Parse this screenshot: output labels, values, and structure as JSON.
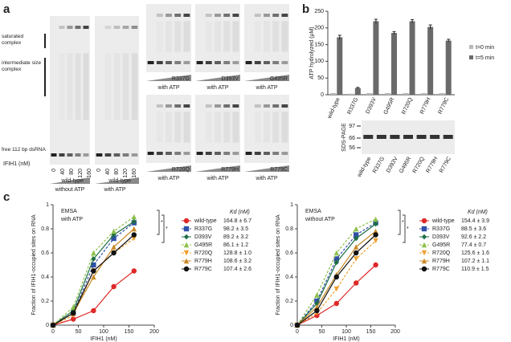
{
  "panel_labels": [
    "a",
    "b",
    "c"
  ],
  "gel_a": {
    "saturated": "saturated complex",
    "intermediate": "intermediate size complex",
    "free": "free 112 bp dsRNA",
    "ifih1": "IFIH1 (nM)",
    "lanes": [
      "0",
      "40",
      "80",
      "120",
      "160"
    ],
    "wedge": "wild-type",
    "conditions": [
      "without ATP",
      "with ATP"
    ]
  },
  "mutant_gels": [
    {
      "name": "R337G",
      "condition": "with ATP"
    },
    {
      "name": "D393V",
      "condition": "with ATP"
    },
    {
      "name": "G495R",
      "condition": "with ATP"
    },
    {
      "name": "R720Q",
      "condition": "with ATP"
    },
    {
      "name": "R779H",
      "condition": "with ATP"
    },
    {
      "name": "R779C",
      "condition": "with ATP"
    }
  ],
  "sds_page": {
    "label": "SDS-PAGE",
    "markers": [
      "97",
      "66",
      "56"
    ],
    "lanes": [
      "wild-type",
      "R337G",
      "D393V",
      "G495R",
      "R720Q",
      "R779H",
      "R779C"
    ]
  },
  "chart_data": [
    {
      "type": "bar",
      "ylabel": "ATP hydrolyzed (μM)",
      "categories": [
        "wild-type",
        "R337G",
        "D393V",
        "G495R",
        "R720Q",
        "R779H",
        "R779C"
      ],
      "series": [
        {
          "name": "t=0 min",
          "color": "#b8b8b8",
          "values": [
            5,
            3,
            5,
            5,
            5,
            5,
            5
          ]
        },
        {
          "name": "t=5 min",
          "color": "#6a6a6a",
          "values": [
            172,
            20,
            220,
            185,
            220,
            203,
            162
          ],
          "errors": [
            6,
            2,
            6,
            4,
            5,
            6,
            4
          ]
        }
      ],
      "ylim": [
        0,
        250
      ],
      "yticks": [
        0,
        50,
        100,
        150,
        200,
        250
      ]
    },
    {
      "type": "line",
      "title": "EMSA",
      "subtitle": "with ATP",
      "xlabel": "IFIH1 (nM)",
      "ylabel": "Fraction of IFIH1-occupied sites on RNA",
      "legend_title": "Kd (nM)",
      "annotations": [
        "*",
        "*"
      ],
      "x": [
        0,
        40,
        80,
        120,
        160
      ],
      "xlim": [
        0,
        200
      ],
      "xticks": [
        0,
        50,
        100,
        150,
        200
      ],
      "ylim": [
        0,
        1
      ],
      "yticks": [
        0,
        0.2,
        0.4,
        0.6,
        0.8,
        1
      ],
      "series": [
        {
          "name": "wild-type",
          "color": "#e02828",
          "marker": "circle",
          "dashed": false,
          "kd": "164.8 ± 6.7",
          "values": [
            0,
            0.05,
            0.12,
            0.32,
            0.45
          ]
        },
        {
          "name": "R337G",
          "color": "#3050a8",
          "marker": "square",
          "dashed": true,
          "kd": "98.2 ± 3.5",
          "values": [
            0,
            0.1,
            0.5,
            0.72,
            0.85
          ]
        },
        {
          "name": "D393V",
          "color": "#1e6e44",
          "marker": "diamond",
          "dashed": false,
          "kd": "89.2 ± 3.2",
          "values": [
            0,
            0.12,
            0.55,
            0.75,
            0.86
          ]
        },
        {
          "name": "G495R",
          "color": "#8cc04a",
          "marker": "triangle",
          "dashed": true,
          "kd": "86.1 ± 1.2",
          "values": [
            0,
            0.15,
            0.6,
            0.78,
            0.9
          ]
        },
        {
          "name": "R720Q",
          "color": "#f0a030",
          "marker": "triangle-down",
          "dashed": true,
          "kd": "128.8 ± 1.0",
          "values": [
            0,
            0.08,
            0.45,
            0.6,
            0.72
          ]
        },
        {
          "name": "R779H",
          "color": "#c88a28",
          "marker": "triangle",
          "dashed": false,
          "kd": "108.6 ± 3.2",
          "values": [
            0,
            0.1,
            0.4,
            0.65,
            0.8
          ]
        },
        {
          "name": "R779C",
          "color": "#111111",
          "marker": "circle",
          "dashed": false,
          "kd": "107.4 ± 2.6",
          "values": [
            0,
            0.1,
            0.45,
            0.6,
            0.75
          ]
        }
      ]
    },
    {
      "type": "line",
      "title": "EMSA",
      "subtitle": "without ATP",
      "xlabel": "IFIH1 (nM)",
      "ylabel": "Fraction of IFIH1-occupied sites on RNA",
      "legend_title": "Kd (nM)",
      "annotations": [
        "*",
        "*"
      ],
      "x": [
        0,
        40,
        80,
        120,
        160
      ],
      "xlim": [
        0,
        200
      ],
      "xticks": [
        0,
        50,
        100,
        150,
        200
      ],
      "ylim": [
        0,
        1
      ],
      "yticks": [
        0,
        0.2,
        0.4,
        0.6,
        0.8,
        1
      ],
      "series": [
        {
          "name": "wild-type",
          "color": "#e02828",
          "marker": "circle",
          "dashed": false,
          "kd": "154.4 ± 3.9",
          "values": [
            0,
            0.08,
            0.18,
            0.35,
            0.5
          ]
        },
        {
          "name": "R337G",
          "color": "#3050a8",
          "marker": "square",
          "dashed": true,
          "kd": "88.5 ± 3.6",
          "values": [
            0,
            0.2,
            0.55,
            0.75,
            0.85
          ]
        },
        {
          "name": "D393V",
          "color": "#1e6e44",
          "marker": "diamond",
          "dashed": false,
          "kd": "92.6 ± 2.2",
          "values": [
            0,
            0.18,
            0.52,
            0.72,
            0.84
          ]
        },
        {
          "name": "G495R",
          "color": "#8cc04a",
          "marker": "triangle",
          "dashed": true,
          "kd": "77.4 ± 0.7",
          "values": [
            0,
            0.25,
            0.6,
            0.8,
            0.88
          ]
        },
        {
          "name": "R720Q",
          "color": "#f0a030",
          "marker": "triangle-down",
          "dashed": true,
          "kd": "125.6 ± 1.6",
          "values": [
            0,
            0.1,
            0.3,
            0.55,
            0.7
          ]
        },
        {
          "name": "R779H",
          "color": "#c88a28",
          "marker": "triangle",
          "dashed": false,
          "kd": "107.2 ± 1.1",
          "values": [
            0,
            0.15,
            0.42,
            0.65,
            0.78
          ]
        },
        {
          "name": "R779C",
          "color": "#111111",
          "marker": "circle",
          "dashed": false,
          "kd": "110.9 ± 1.5",
          "values": [
            0,
            0.12,
            0.4,
            0.6,
            0.75
          ]
        }
      ]
    }
  ]
}
